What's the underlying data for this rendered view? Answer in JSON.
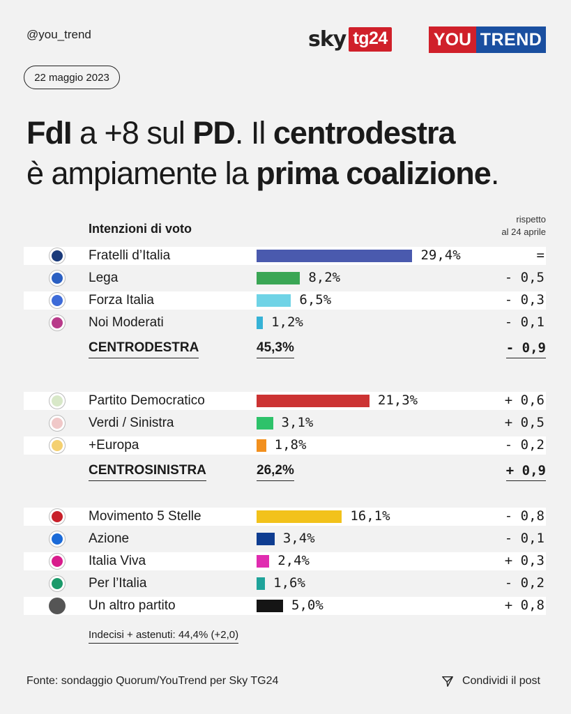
{
  "header": {
    "handle": "@you_trend",
    "logo_sky": "sky",
    "logo_tg": "tg24",
    "logo_you": "YOU",
    "logo_trend": "TREND",
    "date": "22 maggio 2023"
  },
  "title": {
    "part1": "FdI",
    "part2": " a +8 sul ",
    "part3": "PD",
    "part4": ". Il ",
    "part5": "centrodestra",
    "part6": "è ampiamente la ",
    "part7": "prima coalizione",
    "part8": "."
  },
  "table": {
    "column_header": "Intenzioni di voto",
    "delta_header_line1": "rispetto",
    "delta_header_line2": "al 24 aprile"
  },
  "chart_data": {
    "type": "bar",
    "title": "Intenzioni di voto",
    "value_unit": "%",
    "comparison_label": "rispetto al 24 aprile",
    "groups": [
      {
        "coalition": "CENTRODESTRA",
        "coalition_value": "45,3%",
        "coalition_delta": "- 0,9",
        "parties": [
          {
            "name": "Fratelli d’Italia",
            "value": 29.4,
            "label": "29,4%",
            "delta": "=",
            "color": "#4a5aae"
          },
          {
            "name": "Lega",
            "value": 8.2,
            "label": "8,2%",
            "delta": "- 0,5",
            "color": "#3aa655"
          },
          {
            "name": "Forza Italia",
            "value": 6.5,
            "label": "6,5%",
            "delta": "- 0,3",
            "color": "#6fd3e6"
          },
          {
            "name": "Noi Moderati",
            "value": 1.2,
            "label": "1,2%",
            "delta": "- 0,1",
            "color": "#36b2d6"
          }
        ]
      },
      {
        "coalition": "CENTROSINISTRA",
        "coalition_value": "26,2%",
        "coalition_delta": "+ 0,9",
        "parties": [
          {
            "name": "Partito Democratico",
            "value": 21.3,
            "label": "21,3%",
            "delta": "+ 0,6",
            "color": "#cc3333"
          },
          {
            "name": "Verdi / Sinistra",
            "value": 3.1,
            "label": "3,1%",
            "delta": "+ 0,5",
            "color": "#2ec26a"
          },
          {
            "name": "+Europa",
            "value": 1.8,
            "label": "1,8%",
            "delta": "- 0,2",
            "color": "#f2901e"
          }
        ]
      },
      {
        "coalition": "",
        "coalition_value": "",
        "coalition_delta": "",
        "parties": [
          {
            "name": "Movimento 5 Stelle",
            "value": 16.1,
            "label": "16,1%",
            "delta": "- 0,8",
            "color": "#f2c21b"
          },
          {
            "name": "Azione",
            "value": 3.4,
            "label": "3,4%",
            "delta": "- 0,1",
            "color": "#0f3d91"
          },
          {
            "name": "Italia Viva",
            "value": 2.4,
            "label": "2,4%",
            "delta": "+ 0,3",
            "color": "#e02cb0"
          },
          {
            "name": "Per l’Italia",
            "value": 1.6,
            "label": "1,6%",
            "delta": "- 0,2",
            "color": "#1fa39a"
          },
          {
            "name": "Un altro partito",
            "value": 5.0,
            "label": "5,0%",
            "delta": "+ 0,8",
            "color": "#151515"
          }
        ]
      }
    ]
  },
  "note": "Indecisi + astenuti: 44,4% (+2,0)",
  "footer": {
    "source": "Fonte: sondaggio Quorum/YouTrend per Sky TG24",
    "share_label": "Condividi il post"
  }
}
